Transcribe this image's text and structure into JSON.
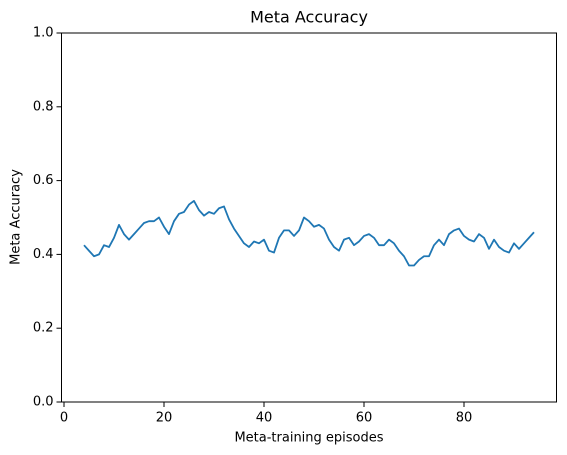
{
  "chart_data": {
    "type": "line",
    "title": "Meta Accuracy",
    "x_label": "Meta-training episodes",
    "y_label": "Meta Accuracy",
    "x": [
      4,
      5,
      6,
      7,
      8,
      9,
      10,
      11,
      12,
      13,
      14,
      15,
      16,
      17,
      18,
      19,
      20,
      21,
      22,
      23,
      24,
      25,
      26,
      27,
      28,
      29,
      30,
      31,
      32,
      33,
      34,
      35,
      36,
      37,
      38,
      39,
      40,
      41,
      42,
      43,
      44,
      45,
      46,
      47,
      48,
      49,
      50,
      51,
      52,
      53,
      54,
      55,
      56,
      57,
      58,
      59,
      60,
      61,
      62,
      63,
      64,
      65,
      66,
      67,
      68,
      69,
      70,
      71,
      72,
      73,
      74,
      75,
      76,
      77,
      78,
      79,
      80,
      81,
      82,
      83,
      84,
      85,
      86,
      87,
      88,
      89,
      90,
      91,
      92,
      93,
      94
    ],
    "series": [
      {
        "name": "Meta Accuracy",
        "color": "#1f77b4",
        "values": [
          0.425,
          0.41,
          0.395,
          0.4,
          0.425,
          0.42,
          0.445,
          0.48,
          0.455,
          0.44,
          0.455,
          0.47,
          0.485,
          0.49,
          0.49,
          0.5,
          0.475,
          0.455,
          0.49,
          0.51,
          0.515,
          0.535,
          0.545,
          0.52,
          0.505,
          0.515,
          0.51,
          0.525,
          0.53,
          0.495,
          0.47,
          0.45,
          0.43,
          0.42,
          0.435,
          0.43,
          0.44,
          0.41,
          0.405,
          0.445,
          0.465,
          0.465,
          0.45,
          0.465,
          0.5,
          0.49,
          0.475,
          0.48,
          0.47,
          0.44,
          0.42,
          0.41,
          0.44,
          0.445,
          0.425,
          0.435,
          0.45,
          0.455,
          0.445,
          0.425,
          0.425,
          0.44,
          0.43,
          0.41,
          0.395,
          0.37,
          0.37,
          0.385,
          0.395,
          0.395,
          0.425,
          0.44,
          0.425,
          0.455,
          0.465,
          0.47,
          0.45,
          0.44,
          0.435,
          0.455,
          0.445,
          0.415,
          0.44,
          0.42,
          0.41,
          0.405,
          0.43,
          0.415,
          0.43,
          0.445,
          0.46
        ]
      }
    ],
    "xlim": [
      -0.5,
      98.5
    ],
    "xticks": [
      0,
      20,
      40,
      60,
      80
    ],
    "ylim": [
      0,
      1
    ],
    "yticks": [
      {
        "value": 0,
        "label": "0.0"
      },
      {
        "value": 0.2,
        "label": "0.2"
      },
      {
        "value": 0.4,
        "label": "0.4"
      },
      {
        "value": 0.6,
        "label": "0.6"
      },
      {
        "value": 0.8,
        "label": "0.8"
      },
      {
        "value": 1,
        "label": "1.0"
      }
    ]
  }
}
